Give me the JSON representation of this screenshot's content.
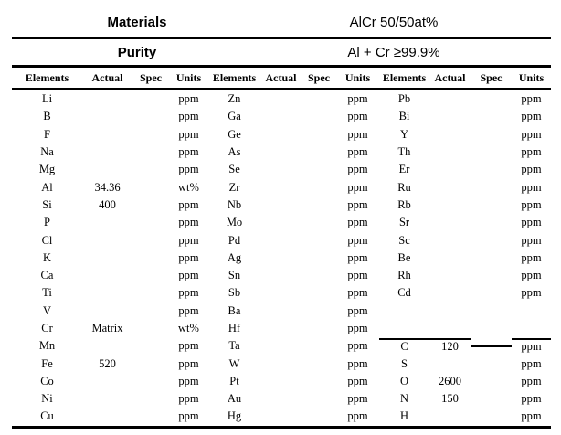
{
  "header": {
    "materials_label": "Materials",
    "materials_value": "AlCr 50/50at%",
    "purity_label": "Purity",
    "purity_value": "Al + Cr ≥99.9%"
  },
  "table": {
    "column_headers": [
      "Elements",
      "Actual",
      "Spec",
      "Units",
      "Elements",
      "Actual",
      "Spec",
      "Units",
      "Elements",
      "Actual",
      "Spec",
      "Units"
    ],
    "group3_divider_row_index": 14,
    "group1": [
      {
        "el": "Li",
        "actual": "",
        "spec": "",
        "units": "ppm"
      },
      {
        "el": "B",
        "actual": "",
        "spec": "",
        "units": "ppm"
      },
      {
        "el": "F",
        "actual": "",
        "spec": "",
        "units": "ppm"
      },
      {
        "el": "Na",
        "actual": "",
        "spec": "",
        "units": "ppm"
      },
      {
        "el": "Mg",
        "actual": "",
        "spec": "",
        "units": "ppm"
      },
      {
        "el": "Al",
        "actual": "34.36",
        "spec": "",
        "units": "wt%"
      },
      {
        "el": "Si",
        "actual": "400",
        "spec": "",
        "units": "ppm"
      },
      {
        "el": "P",
        "actual": "",
        "spec": "",
        "units": "ppm"
      },
      {
        "el": "Cl",
        "actual": "",
        "spec": "",
        "units": "ppm"
      },
      {
        "el": "K",
        "actual": "",
        "spec": "",
        "units": "ppm"
      },
      {
        "el": "Ca",
        "actual": "",
        "spec": "",
        "units": "ppm"
      },
      {
        "el": "Ti",
        "actual": "",
        "spec": "",
        "units": "ppm"
      },
      {
        "el": "V",
        "actual": "",
        "spec": "",
        "units": "ppm"
      },
      {
        "el": "Cr",
        "actual": "Matrix",
        "spec": "",
        "units": "wt%"
      },
      {
        "el": "Mn",
        "actual": "",
        "spec": "",
        "units": "ppm"
      },
      {
        "el": "Fe",
        "actual": "520",
        "spec": "",
        "units": "ppm"
      },
      {
        "el": "Co",
        "actual": "",
        "spec": "",
        "units": "ppm"
      },
      {
        "el": "Ni",
        "actual": "",
        "spec": "",
        "units": "ppm"
      },
      {
        "el": "Cu",
        "actual": "",
        "spec": "",
        "units": "ppm"
      }
    ],
    "group2": [
      {
        "el": "Zn",
        "actual": "",
        "spec": "",
        "units": "ppm"
      },
      {
        "el": "Ga",
        "actual": "",
        "spec": "",
        "units": "ppm"
      },
      {
        "el": "Ge",
        "actual": "",
        "spec": "",
        "units": "ppm"
      },
      {
        "el": "As",
        "actual": "",
        "spec": "",
        "units": "ppm"
      },
      {
        "el": "Se",
        "actual": "",
        "spec": "",
        "units": "ppm"
      },
      {
        "el": "Zr",
        "actual": "",
        "spec": "",
        "units": "ppm"
      },
      {
        "el": "Nb",
        "actual": "",
        "spec": "",
        "units": "ppm"
      },
      {
        "el": "Mo",
        "actual": "",
        "spec": "",
        "units": "ppm"
      },
      {
        "el": "Pd",
        "actual": "",
        "spec": "",
        "units": "ppm"
      },
      {
        "el": "Ag",
        "actual": "",
        "spec": "",
        "units": "ppm"
      },
      {
        "el": "Sn",
        "actual": "",
        "spec": "",
        "units": "ppm"
      },
      {
        "el": "Sb",
        "actual": "",
        "spec": "",
        "units": "ppm"
      },
      {
        "el": "Ba",
        "actual": "",
        "spec": "",
        "units": "ppm"
      },
      {
        "el": "Hf",
        "actual": "",
        "spec": "",
        "units": "ppm"
      },
      {
        "el": "Ta",
        "actual": "",
        "spec": "",
        "units": "ppm"
      },
      {
        "el": "W",
        "actual": "",
        "spec": "",
        "units": "ppm"
      },
      {
        "el": "Pt",
        "actual": "",
        "spec": "",
        "units": "ppm"
      },
      {
        "el": "Au",
        "actual": "",
        "spec": "",
        "units": "ppm"
      },
      {
        "el": "Hg",
        "actual": "",
        "spec": "",
        "units": "ppm"
      }
    ],
    "group3": [
      {
        "el": "Pb",
        "actual": "",
        "spec": "",
        "units": "ppm"
      },
      {
        "el": "Bi",
        "actual": "",
        "spec": "",
        "units": "ppm"
      },
      {
        "el": "Y",
        "actual": "",
        "spec": "",
        "units": "ppm"
      },
      {
        "el": "Th",
        "actual": "",
        "spec": "",
        "units": "ppm"
      },
      {
        "el": "Er",
        "actual": "",
        "spec": "",
        "units": "ppm"
      },
      {
        "el": "Ru",
        "actual": "",
        "spec": "",
        "units": "ppm"
      },
      {
        "el": "Rb",
        "actual": "",
        "spec": "",
        "units": "ppm"
      },
      {
        "el": "Sr",
        "actual": "",
        "spec": "",
        "units": "ppm"
      },
      {
        "el": "Sc",
        "actual": "",
        "spec": "",
        "units": "ppm"
      },
      {
        "el": "Be",
        "actual": "",
        "spec": "",
        "units": "ppm"
      },
      {
        "el": "Rh",
        "actual": "",
        "spec": "",
        "units": "ppm"
      },
      {
        "el": "Cd",
        "actual": "",
        "spec": "",
        "units": "ppm"
      },
      {
        "el": "",
        "actual": "",
        "spec": "",
        "units": ""
      },
      {
        "el": "",
        "actual": "",
        "spec": "",
        "units": ""
      },
      {
        "el": "C",
        "actual": "120",
        "spec": "",
        "units": "ppm"
      },
      {
        "el": "S",
        "actual": "",
        "spec": "",
        "units": "ppm"
      },
      {
        "el": "O",
        "actual": "2600",
        "spec": "",
        "units": "ppm"
      },
      {
        "el": "N",
        "actual": "150",
        "spec": "",
        "units": "ppm"
      },
      {
        "el": "H",
        "actual": "",
        "spec": "",
        "units": "ppm"
      }
    ]
  }
}
